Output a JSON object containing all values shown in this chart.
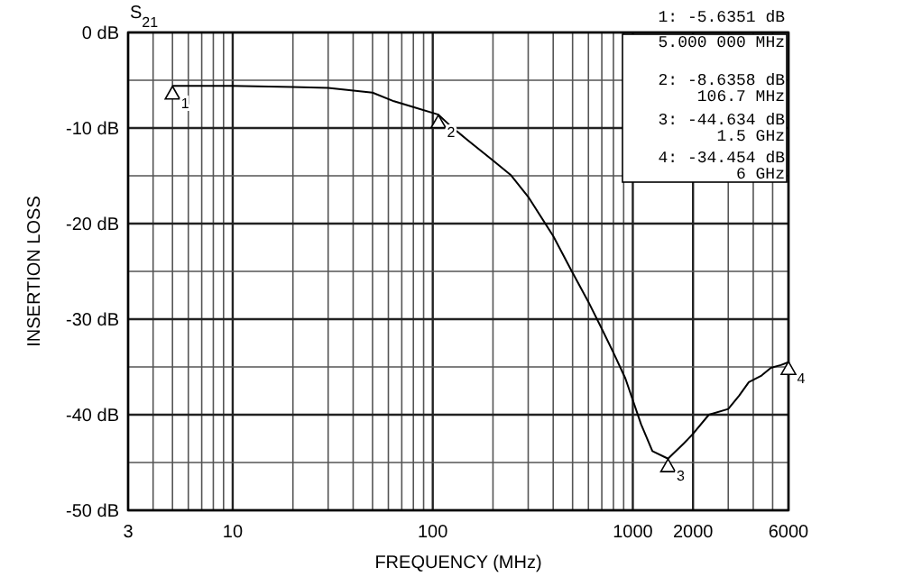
{
  "chart_data": {
    "type": "line",
    "title": "S$_{21}$",
    "xlabel": "FREQUENCY (MHz)",
    "ylabel": "INSERTION LOSS",
    "log": "x",
    "grid": true,
    "marker": "none",
    "line_style": "solid",
    "xlim": [
      3,
      6000
    ],
    "ylim": [
      -50,
      0
    ],
    "xticks": [
      3,
      {
        "value": 4,
        "label": null
      },
      {
        "value": 5,
        "label": null
      },
      {
        "value": 6,
        "label": null
      },
      {
        "value": 7,
        "label": null
      },
      {
        "value": 8,
        "label": null
      },
      {
        "value": 9,
        "label": null
      },
      10,
      {
        "value": 20,
        "label": null
      },
      {
        "value": 30,
        "label": null
      },
      {
        "value": 40,
        "label": null
      },
      {
        "value": 50,
        "label": null
      },
      {
        "value": 60,
        "label": null
      },
      {
        "value": 70,
        "label": null
      },
      {
        "value": 80,
        "label": null
      },
      {
        "value": 90,
        "label": null
      },
      100,
      {
        "value": 200,
        "label": null
      },
      {
        "value": 300,
        "label": null
      },
      {
        "value": 400,
        "label": null
      },
      {
        "value": 500,
        "label": null
      },
      {
        "value": 600,
        "label": null
      },
      {
        "value": 700,
        "label": null
      },
      {
        "value": 800,
        "label": null
      },
      {
        "value": 900,
        "label": null
      },
      1000,
      2000,
      {
        "value": 3000,
        "label": null
      },
      {
        "value": 4000,
        "label": null
      },
      {
        "value": 5000,
        "label": null
      },
      6000
    ],
    "yticks": [
      {
        "value": 0,
        "label": "0 dB"
      },
      {
        "value": -5,
        "label": null
      },
      {
        "value": -10,
        "label": "-10 dB"
      },
      {
        "value": -15,
        "label": null
      },
      {
        "value": -20,
        "label": "-20 dB"
      },
      {
        "value": -25,
        "label": null
      },
      {
        "value": -30,
        "label": "-30 dB"
      },
      {
        "value": -35,
        "label": null
      },
      {
        "value": -40,
        "label": "-40 dB"
      },
      {
        "value": -45,
        "label": null
      },
      {
        "value": -50,
        "label": "-50 dB"
      }
    ],
    "series": [
      {
        "color": "#000000",
        "x": [
          5,
          10,
          20,
          30,
          50,
          64,
          80,
          106.7,
          123,
          150,
          200,
          245,
          300,
          400,
          493,
          600,
          692,
          800,
          918,
          1100,
          1253,
          1500,
          1800,
          2000,
          2400,
          3000,
          3400,
          3800,
          4400,
          4900,
          5500,
          6000
        ],
        "values": [
          -5.6,
          -5.6,
          -5.7,
          -5.8,
          -6.3,
          -7.2,
          -7.8,
          -8.6,
          -9.8,
          -11.3,
          -13.4,
          -14.9,
          -17.2,
          -21.3,
          -24.9,
          -28.2,
          -30.8,
          -33.5,
          -36.2,
          -41,
          -43.8,
          -44.6,
          -43,
          -42,
          -40,
          -39.4,
          -38,
          -36.6,
          -35.9,
          -35.1,
          -34.8,
          -34.5
        ]
      }
    ],
    "annotations": [
      {
        "text": "1",
        "x": 5,
        "y": -5.6351
      },
      {
        "text": "2",
        "x": 106.7,
        "y": -8.6358
      },
      {
        "text": "3",
        "x": 1500,
        "y": -44.634
      },
      {
        "text": "4",
        "x": 6000,
        "y": -34.454
      },
      "1: -5.6351 dB",
      "5.000 000 MHz",
      "2: -8.6358 dB",
      "106.7 MHz",
      "3: -44.634 dB",
      "1.5 GHz",
      "4: -34.454 dB",
      "6 GHz"
    ]
  }
}
